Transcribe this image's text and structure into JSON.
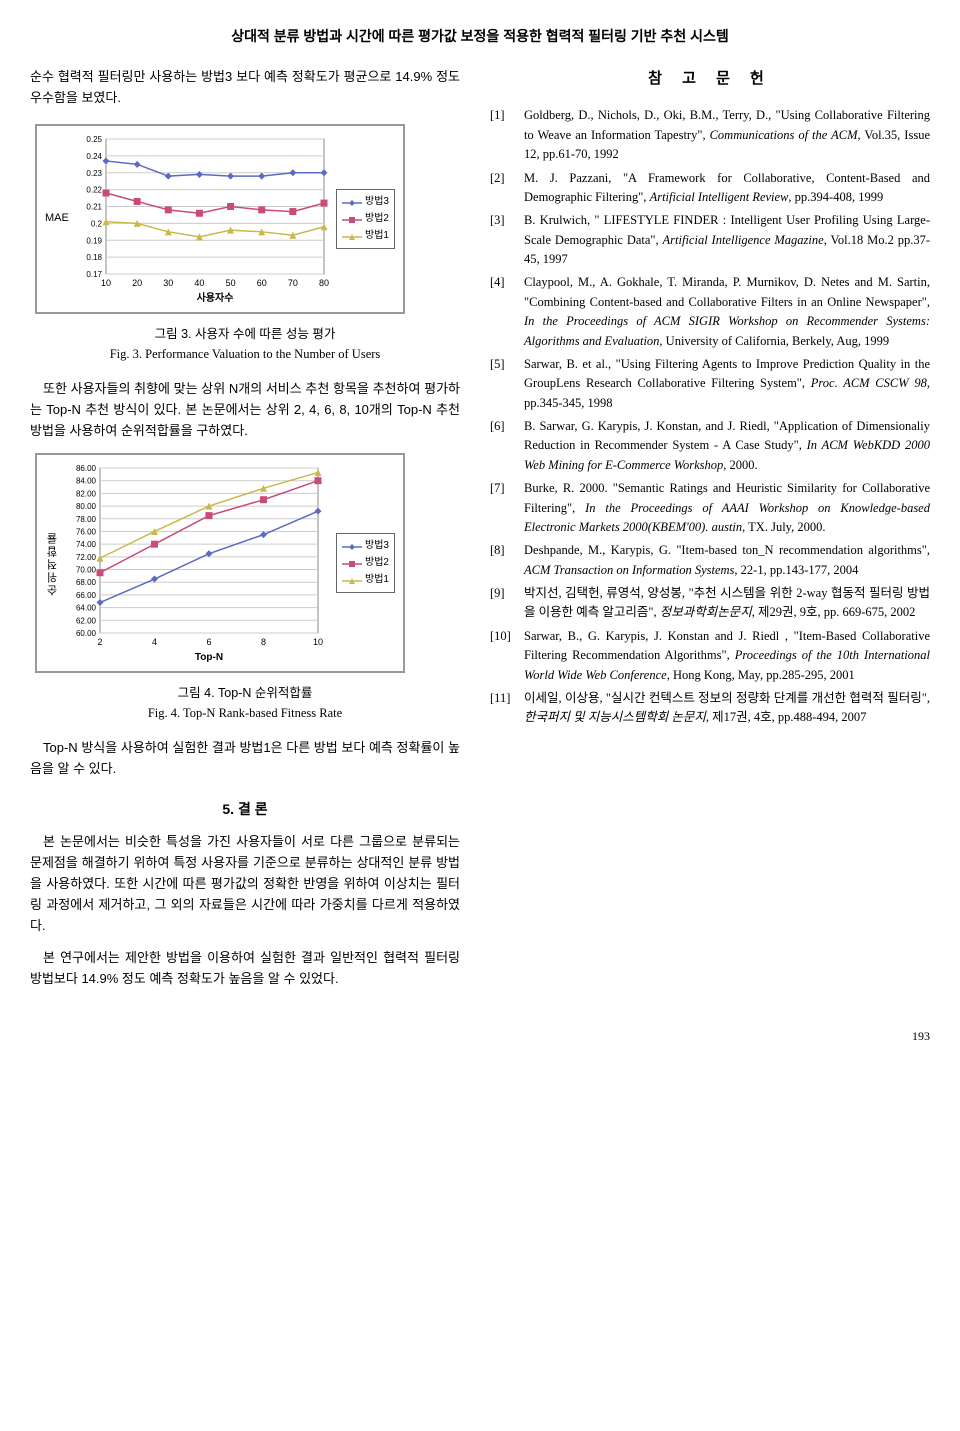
{
  "page_title": "상대적 분류 방법과 시간에 따른 평가값 보정을 적용한 협력적 필터링 기반 추천 시스템",
  "intro": "순수 협력적 필터링만 사용하는 방법3 보다 예측 정확도가 평균으로 14.9% 정도 우수함을 보였다.",
  "chart3": {
    "type": "line",
    "y_label": "MAE",
    "x_label": "사용자수",
    "x": [
      10,
      20,
      30,
      40,
      50,
      60,
      70,
      80
    ],
    "ylim": [
      0.17,
      0.25
    ],
    "ytick_step": 0.01,
    "yticks": [
      "0.17",
      "0.18",
      "0.19",
      "0.2",
      "0.21",
      "0.22",
      "0.23",
      "0.24",
      "0.25"
    ],
    "series": [
      {
        "name": "방법3",
        "color": "#5b6bbf",
        "shape": "diamond",
        "values": [
          0.237,
          0.235,
          0.228,
          0.229,
          0.228,
          0.228,
          0.23,
          0.23
        ]
      },
      {
        "name": "방법2",
        "color": "#c94b7a",
        "shape": "square",
        "values": [
          0.218,
          0.213,
          0.208,
          0.206,
          0.21,
          0.208,
          0.207,
          0.212
        ]
      },
      {
        "name": "방법1",
        "color": "#c9b94b",
        "shape": "triangle",
        "values": [
          0.201,
          0.2,
          0.195,
          0.192,
          0.196,
          0.195,
          0.193,
          0.198
        ]
      }
    ],
    "caption_ko": "그림 3. 사용자 수에 따른 성능 평가",
    "caption_en": "Fig. 3. Performance Valuation to the Number of Users"
  },
  "para_mid": "또한 사용자들의 취향에 맞는 상위 N개의 서비스 추천 항목을 추천하여 평가하는 Top-N 추천 방식이 있다. 본 논문에서는 상위 2, 4, 6, 8, 10개의 Top-N 추천 방법을 사용하여 순위적합률을 구하였다.",
  "chart4": {
    "type": "line",
    "y_label": "순위적합률",
    "x_label": "Top-N",
    "x": [
      2,
      4,
      6,
      8,
      10
    ],
    "ylim": [
      60.0,
      86.0
    ],
    "ytick_step": 2.0,
    "yticks": [
      "60.00",
      "62.00",
      "64.00",
      "66.00",
      "68.00",
      "70.00",
      "72.00",
      "74.00",
      "76.00",
      "78.00",
      "80.00",
      "82.00",
      "84.00",
      "86.00"
    ],
    "series": [
      {
        "name": "방법3",
        "color": "#5b6bbf",
        "shape": "diamond",
        "values": [
          64.8,
          68.5,
          72.5,
          75.5,
          79.2
        ]
      },
      {
        "name": "방법2",
        "color": "#c94b7a",
        "shape": "square",
        "values": [
          69.5,
          74.0,
          78.5,
          81.0,
          84.0
        ]
      },
      {
        "name": "방법1",
        "color": "#c9b94b",
        "shape": "triangle",
        "values": [
          71.8,
          76.0,
          80.0,
          82.8,
          85.3
        ]
      }
    ],
    "caption_ko": "그림 4. Top-N 순위적합률",
    "caption_en": "Fig. 4. Top-N Rank-based Fitness Rate"
  },
  "para_after4": "Top-N 방식을 사용하여 실험한 결과 방법1은 다른 방법 보다 예측 정확률이 높음을 알 수 있다.",
  "concl_head": "5. 결 론",
  "concl_p1": "본 논문에서는 비슷한 특성을 가진 사용자들이 서로 다른 그룹으로 분류되는 문제점을 해결하기 위하여 특정 사용자를 기준으로 분류하는 상대적인 분류 방법을 사용하였다. 또한 시간에 따른 평가값의 정확한 반영을 위하여 이상치는 필터링 과정에서 제거하고, 그 외의 자료들은 시간에 따라 가중치를 다르게 적용하였다.",
  "concl_p2": "본 연구에서는 제안한 방법을 이용하여 실험한 결과 일반적인 협력적 필터링 방법보다 14.9% 정도 예측 정확도가 높음을 알 수 있었다.",
  "ref_head": "참 고 문 헌",
  "refs": [
    {
      "n": "[1]",
      "t": "Goldberg, D., Nichols, D., Oki, B.M., Terry, D., \"Using Collaborative Filtering to Weave an Information Tapestry\", <em>Communications of the ACM</em>, Vol.35, Issue 12, pp.61-70, 1992"
    },
    {
      "n": "[2]",
      "t": "M. J. Pazzani, \"A Framework for Collaborative, Content-Based and Demographic Filtering\", <em>Artificial Intelligent Review</em>, pp.394-408, 1999"
    },
    {
      "n": "[3]",
      "t": "B. Krulwich, \" LIFESTYLE FINDER : Intelligent User Profiling Using Large-Scale Demographic Data\", <em>Artificial Intelligence Magazine</em>, Vol.18 Mo.2 pp.37-45, 1997"
    },
    {
      "n": "[4]",
      "t": "Claypool, M., A. Gokhale, T. Miranda, P. Murnikov, D. Netes and M. Sartin, \"Combining Content-based and Collaborative Filters in an Online Newspaper\", <em>In the Proceedings of ACM SIGIR Workshop on Recommender Systems: Algorithms and Evaluation</em>, University of California, Berkely, Aug, 1999"
    },
    {
      "n": "[5]",
      "t": "Sarwar, B. et al., \"Using Filtering Agents to Improve Prediction Quality in the GroupLens Research Collaborative Filtering System\", <em>Proc. ACM CSCW 98</em>, pp.345-345, 1998"
    },
    {
      "n": "[6]",
      "t": "B. Sarwar, G. Karypis, J. Konstan, and J. Riedl, \"Application of Dimensionaliy Reduction in Recommender System - A Case Study\", <em>In ACM WebKDD 2000 Web Mining for E-Commerce Workshop</em>, 2000."
    },
    {
      "n": "[7]",
      "t": "Burke, R. 2000. \"Semantic Ratings and Heuristic Similarity for Collaborative Filtering\", <em>In the Proceedings of AAAI Workshop on Knowledge-based Electronic Markets 2000(KBEM'00). austin</em>, TX. July, 2000."
    },
    {
      "n": "[8]",
      "t": "Deshpande, M., Karypis, G.  \"Item-based ton_N recommendation algorithms\", <em>ACM Transaction on Information Systems</em>, 22-1, pp.143-177, 2004"
    },
    {
      "n": "[9]",
      "t": "박지선, 김택헌, 류영석, 양성봉, \"추천 시스템을 위한 2-way 협동적 필터링 방법을 이용한 예측 알고리즘\", <em>정보과학회논문지</em>, 제29권, 9호, pp. 669-675, 2002"
    },
    {
      "n": "[10]",
      "t": "Sarwar, B., G. Karypis, J. Konstan and J. Riedl , \"Item-Based Collaborative Filtering Recommendation Algorithms\", <em>Proceedings of the 10th International World Wide Web Conference</em>, Hong Kong, May, pp.285-295, 2001"
    },
    {
      "n": "[11]",
      "t": "이세일, 이상용, \"실시간 컨텍스트 정보의 정량화 단계를 개선한 협력적 필터링\", <em>한국퍼지 및 지능시스템학회 논문지</em>, 제17권, 4호, pp.488-494, 2007"
    }
  ],
  "page_num": "193"
}
